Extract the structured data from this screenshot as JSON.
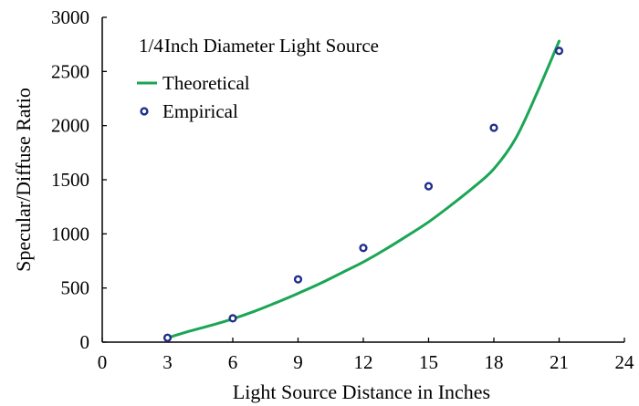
{
  "chart_data": {
    "type": "scatter",
    "title": "",
    "xlabel": "Light Source Distance in Inches",
    "ylabel": "Specular/Diffuse Ratio",
    "xlim": [
      0,
      24
    ],
    "ylim": [
      0,
      3000
    ],
    "x_ticks": [
      "0",
      "3",
      "6",
      "9",
      "12",
      "15",
      "18",
      "21",
      "24"
    ],
    "y_ticks": [
      "0",
      "500",
      "1000",
      "1500",
      "2000",
      "2500",
      "3000"
    ],
    "grid": false,
    "legend": {
      "placement": "top-left",
      "header_fraction": "1/4",
      "header_text": "Inch Diameter Light Source",
      "entries": [
        "Theoretical",
        "Empirical"
      ]
    },
    "series": [
      {
        "name": "Theoretical",
        "kind": "line",
        "color": "#1aa654",
        "x": [
          3,
          4,
          5,
          6,
          7,
          8,
          9,
          10,
          11,
          12,
          13,
          14,
          15,
          16,
          17,
          18,
          19,
          20,
          21
        ],
        "y": [
          40,
          100,
          155,
          215,
          285,
          365,
          450,
          540,
          640,
          740,
          855,
          980,
          1110,
          1260,
          1420,
          1600,
          1880,
          2310,
          2780
        ]
      },
      {
        "name": "Empirical",
        "kind": "scatter",
        "color": "#1f2f8a",
        "x": [
          3,
          6,
          9,
          12,
          15,
          18,
          21
        ],
        "y": [
          40,
          220,
          580,
          870,
          1440,
          1980,
          2690
        ]
      }
    ]
  }
}
